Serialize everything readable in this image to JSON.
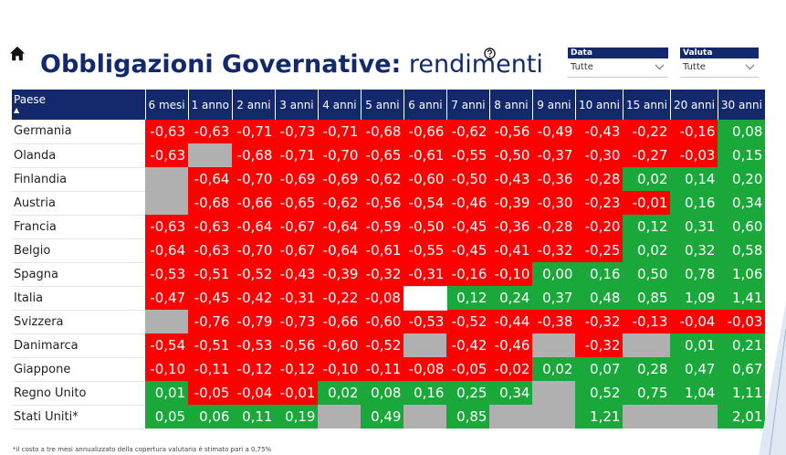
{
  "header": {
    "title_bold": "Obbligazioni Governative:",
    "title_light": "rendimenti"
  },
  "slicers": [
    {
      "label": "Data",
      "value": "Tutte"
    },
    {
      "label": "Valuta",
      "value": "Tutte"
    }
  ],
  "table": {
    "headers": [
      "Paese",
      "6 mesi",
      "1 anno",
      "2 anni",
      "3 anni",
      "4 anni",
      "5 anni",
      "6 anni",
      "7 anni",
      "8 anni",
      "9 anni",
      "10 anni",
      "15 anni",
      "20 anni",
      "30 anni"
    ],
    "rows": [
      {
        "country": "Germania",
        "values": [
          "-0,63",
          "-0,63",
          "-0,71",
          "-0,73",
          "-0,71",
          "-0,68",
          "-0,66",
          "-0,62",
          "-0,56",
          "-0,49",
          "-0,43",
          "-0,22",
          "-0,16",
          "0,08"
        ]
      },
      {
        "country": "Olanda",
        "values": [
          "-0,63",
          null,
          "-0,68",
          "-0,71",
          "-0,70",
          "-0,65",
          "-0,61",
          "-0,55",
          "-0,50",
          "-0,37",
          "-0,30",
          "-0,27",
          "-0,03",
          "0,15"
        ]
      },
      {
        "country": "Finlandia",
        "values": [
          null,
          "-0,64",
          "-0,70",
          "-0,69",
          "-0,69",
          "-0,62",
          "-0,60",
          "-0,50",
          "-0,43",
          "-0,36",
          "-0,28",
          "0,02",
          "0,14",
          "0,20"
        ]
      },
      {
        "country": "Austria",
        "values": [
          null,
          "-0,68",
          "-0,66",
          "-0,65",
          "-0,62",
          "-0,56",
          "-0,54",
          "-0,46",
          "-0,39",
          "-0,30",
          "-0,23",
          "-0,01",
          "0,16",
          "0,34"
        ]
      },
      {
        "country": "Francia",
        "values": [
          "-0,63",
          "-0,63",
          "-0,64",
          "-0,67",
          "-0,64",
          "-0,59",
          "-0,50",
          "-0,45",
          "-0,36",
          "-0,28",
          "-0,20",
          "0,12",
          "0,31",
          "0,60"
        ]
      },
      {
        "country": "Belgio",
        "values": [
          "-0,64",
          "-0,63",
          "-0,70",
          "-0,67",
          "-0,64",
          "-0,61",
          "-0,55",
          "-0,45",
          "-0,41",
          "-0,32",
          "-0,25",
          "0,02",
          "0,32",
          "0,58"
        ]
      },
      {
        "country": "Spagna",
        "values": [
          "-0,53",
          "-0,51",
          "-0,52",
          "-0,43",
          "-0,39",
          "-0,32",
          "-0,31",
          "-0,16",
          "-0,10",
          "0,00",
          "0,16",
          "0,50",
          "0,78",
          "1,06"
        ]
      },
      {
        "country": "Italia",
        "values": [
          "-0,47",
          "-0,45",
          "-0,42",
          "-0,31",
          "-0,22",
          "-0,08",
          "",
          "0,12",
          "0,24",
          "0,37",
          "0,48",
          "0,85",
          "1,09",
          "1,41"
        ]
      },
      {
        "country": "Svizzera",
        "values": [
          null,
          "-0,76",
          "-0,79",
          "-0,73",
          "-0,66",
          "-0,60",
          "-0,53",
          "-0,52",
          "-0,44",
          "-0,38",
          "-0,32",
          "-0,13",
          "-0,04",
          "-0,03"
        ]
      },
      {
        "country": "Danimarca",
        "values": [
          "-0,54",
          "-0,51",
          "-0,53",
          "-0,56",
          "-0,60",
          "-0,52",
          null,
          "-0,42",
          "-0,46",
          null,
          "-0,32",
          null,
          "0,01",
          "0,21"
        ]
      },
      {
        "country": "Giappone",
        "values": [
          "-0,10",
          "-0,11",
          "-0,12",
          "-0,12",
          "-0,10",
          "-0,11",
          "-0,08",
          "-0,05",
          "-0,02",
          "0,02",
          "0,07",
          "0,28",
          "0,47",
          "0,67"
        ]
      },
      {
        "country": "Regno Unito",
        "values": [
          "0,01",
          "-0,05",
          "-0,04",
          "-0,01",
          "0,02",
          "0,08",
          "0,16",
          "0,25",
          "0,34",
          null,
          "0,52",
          "0,75",
          "1,04",
          "1,11"
        ]
      },
      {
        "country": "Stati Uniti*",
        "values": [
          "0,05",
          "0,06",
          "0,11",
          "0,19",
          null,
          "0,49",
          null,
          "0,85",
          null,
          null,
          "1,21",
          null,
          null,
          "2,01"
        ]
      }
    ]
  },
  "footnote": "*il costo a tre mesi annualizzato della copertura valutaria è stimato pari a 0,75%",
  "colors": {
    "negative": "#ff0000",
    "positive": "#1ba83a",
    "missing": "#b0b0b0",
    "header": "#13296b"
  },
  "icons": {
    "home": "home-icon",
    "help": "help-icon",
    "dropdown": "chevron-down-icon"
  }
}
